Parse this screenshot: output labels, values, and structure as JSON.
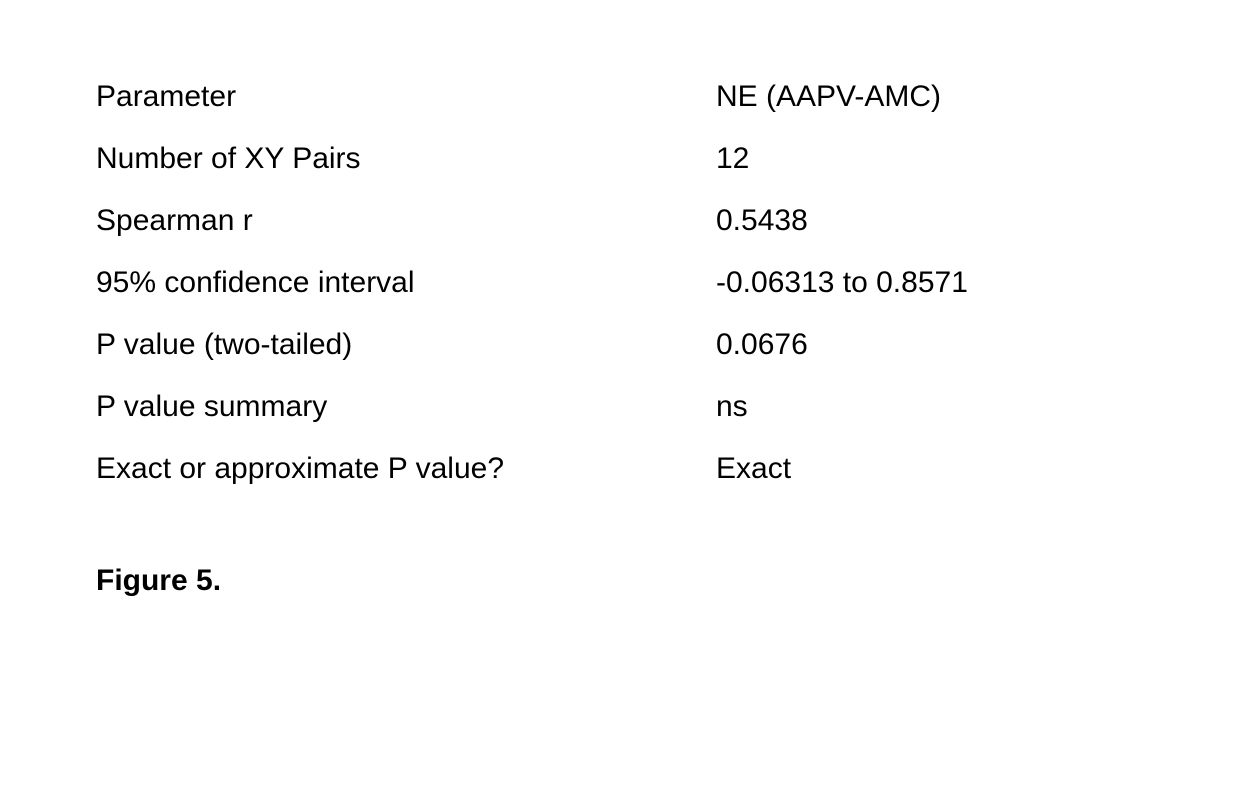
{
  "table": {
    "header": {
      "param": "Parameter",
      "value": "NE (AAPV-AMC)"
    },
    "rows": [
      {
        "param": "Number of XY Pairs",
        "value": "12"
      },
      {
        "param": "Spearman r",
        "value": "0.5438"
      },
      {
        "param": "95% confidence interval",
        "value": "-0.06313 to 0.8571"
      },
      {
        "param": "P value (two-tailed)",
        "value": "0.0676"
      },
      {
        "param": "P value summary",
        "value": "ns"
      },
      {
        "param": "Exact or approximate P value?",
        "value": "Exact"
      }
    ]
  },
  "caption": "Figure 5."
}
